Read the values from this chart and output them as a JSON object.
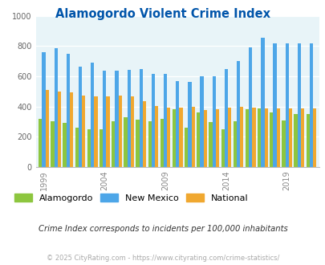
{
  "title": "Alamogordo Violent Crime Index",
  "years": [
    1999,
    2000,
    2001,
    2002,
    2003,
    2004,
    2005,
    2006,
    2007,
    2008,
    2009,
    2010,
    2011,
    2012,
    2013,
    2014,
    2015,
    2016,
    2017,
    2018,
    2019,
    2020,
    2021
  ],
  "alamogordo": [
    320,
    300,
    290,
    260,
    250,
    250,
    305,
    330,
    315,
    305,
    320,
    380,
    260,
    360,
    295,
    250,
    300,
    380,
    385,
    360,
    310,
    350,
    350
  ],
  "new_mexico": [
    760,
    785,
    750,
    665,
    690,
    640,
    640,
    645,
    650,
    615,
    615,
    570,
    565,
    600,
    600,
    650,
    700,
    790,
    855,
    820,
    820,
    820,
    820
  ],
  "national": [
    510,
    500,
    495,
    475,
    465,
    465,
    470,
    465,
    435,
    405,
    395,
    395,
    400,
    375,
    380,
    395,
    400,
    395,
    390,
    385,
    385,
    385,
    385
  ],
  "color_alamogordo": "#8dc63f",
  "color_new_mexico": "#4da6e8",
  "color_national": "#f0a830",
  "color_bg": "#e8f4f8",
  "color_title": "#0055aa",
  "ytick_values": [
    0,
    200,
    400,
    600,
    800,
    1000
  ],
  "ytick_labels": [
    "0",
    "200",
    "400",
    "600",
    "800",
    "1000"
  ],
  "xtick_years": [
    1999,
    2004,
    2009,
    2014,
    2019
  ],
  "ylim": [
    0,
    1000
  ],
  "subtitle": "Crime Index corresponds to incidents per 100,000 inhabitants",
  "footer": "© 2025 CityRating.com - https://www.cityrating.com/crime-statistics/",
  "legend_labels": [
    "Alamogordo",
    "New Mexico",
    "National"
  ]
}
